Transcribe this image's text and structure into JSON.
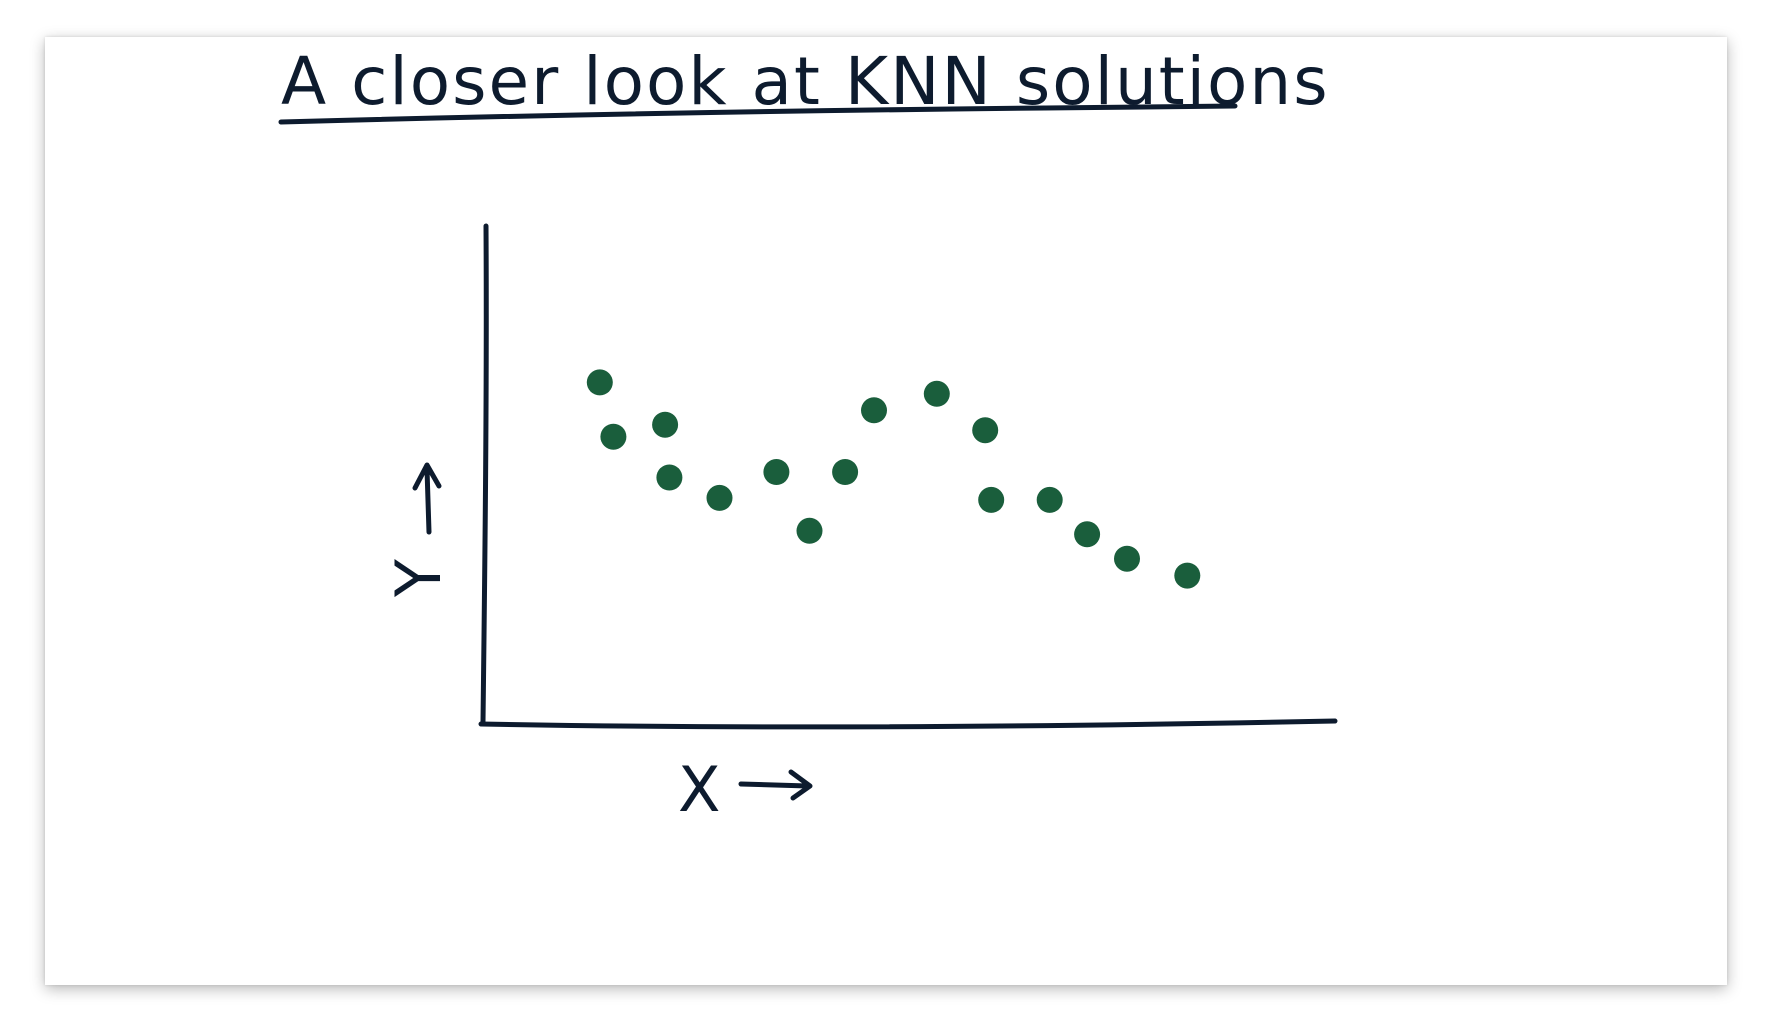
{
  "title": "A closer look at KNN solutions",
  "colors": {
    "ink": "#0d1b2e",
    "point": "#1a5e3c",
    "background": "#ffffff"
  },
  "chart_data": {
    "type": "scatter",
    "title": "A closer look at KNN solutions",
    "xlabel": "X",
    "ylabel": "Y",
    "xlim": [
      0,
      100
    ],
    "ylim": [
      0,
      100
    ],
    "grid": false,
    "series": [
      {
        "points": [
          {
            "x": 13.4,
            "y": 68.6
          },
          {
            "x": 15.0,
            "y": 57.7
          },
          {
            "x": 21.1,
            "y": 60.1
          },
          {
            "x": 21.6,
            "y": 49.5
          },
          {
            "x": 27.5,
            "y": 45.4
          },
          {
            "x": 34.2,
            "y": 50.6
          },
          {
            "x": 38.1,
            "y": 38.8
          },
          {
            "x": 42.3,
            "y": 50.6
          },
          {
            "x": 45.7,
            "y": 63.0
          },
          {
            "x": 53.1,
            "y": 66.3
          },
          {
            "x": 58.8,
            "y": 59.0
          },
          {
            "x": 59.5,
            "y": 45.0
          },
          {
            "x": 66.4,
            "y": 45.0
          },
          {
            "x": 70.8,
            "y": 38.1
          },
          {
            "x": 75.5,
            "y": 33.2
          },
          {
            "x": 82.6,
            "y": 29.8
          }
        ]
      }
    ]
  }
}
